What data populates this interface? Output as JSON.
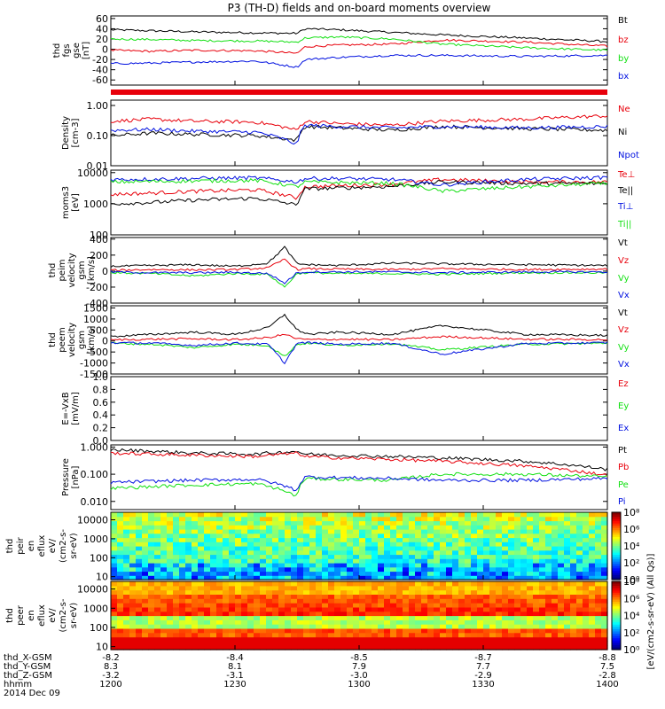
{
  "chart_data": {
    "type": "line",
    "title": "P3 (TH-D) fields and on-board moments overview",
    "date_label": "2014 Dec 09",
    "colors": {
      "black": "#000000",
      "red": "#e8000b",
      "green": "#12e012",
      "blue": "#0010e0"
    },
    "time_axis": {
      "range_hhmm": [
        "1200",
        "1400"
      ],
      "ticks": [
        "1200",
        "1230",
        "1300",
        "1330",
        "1400"
      ]
    },
    "ephemeris": {
      "labels": [
        "thd_X-GSM",
        "thd_Y-GSM",
        "thd_Z-GSM",
        "hhmm"
      ],
      "values": [
        [
          "-8.2",
          "-8.4",
          "-8.5",
          "-8.7",
          "-8.8"
        ],
        [
          "8.3",
          "8.1",
          "7.9",
          "7.7",
          "7.5"
        ],
        [
          "-3.2",
          "-3.1",
          "-3.0",
          "-2.9",
          "-2.8"
        ],
        [
          "1200",
          "1230",
          "1300",
          "1330",
          "1400"
        ]
      ]
    },
    "panels": [
      {
        "id": "fgs",
        "ylabel": [
          "thd",
          "fgs",
          "gse",
          "[nT]"
        ],
        "ylim": [
          -70,
          65
        ],
        "log": false,
        "ticks": [
          "60",
          "40",
          "20",
          "0",
          "-20",
          "-40",
          "-60"
        ],
        "tick_values": [
          60,
          40,
          20,
          0,
          -20,
          -40,
          -60
        ],
        "series": [
          {
            "name": "Bt",
            "color": "black",
            "x": [
              0,
              10,
              20,
              35,
              45,
              47,
              55,
              68,
              80,
              100,
              120
            ],
            "y": [
              38,
              36,
              34,
              32,
              31,
              40,
              38,
              33,
              28,
              22,
              15
            ]
          },
          {
            "name": "bz",
            "color": "red",
            "x": [
              0,
              10,
              20,
              35,
              45,
              47,
              55,
              68,
              80,
              100,
              120
            ],
            "y": [
              -2,
              -4,
              -2,
              -3,
              -8,
              5,
              8,
              10,
              18,
              14,
              6
            ]
          },
          {
            "name": "by",
            "color": "green",
            "x": [
              0,
              10,
              20,
              35,
              45,
              47,
              55,
              68,
              80,
              100,
              120
            ],
            "y": [
              20,
              19,
              17,
              16,
              14,
              22,
              24,
              20,
              10,
              3,
              -2
            ]
          },
          {
            "name": "bx",
            "color": "blue",
            "x": [
              0,
              10,
              20,
              35,
              45,
              47,
              55,
              68,
              80,
              100,
              120
            ],
            "y": [
              -28,
              -27,
              -25,
              -23,
              -35,
              -20,
              -16,
              -12,
              -12,
              -14,
              -12
            ]
          }
        ]
      },
      {
        "id": "density",
        "ylabel": [
          "Density",
          "[cm-3]"
        ],
        "ylim": [
          0.01,
          1.5
        ],
        "log": true,
        "ticks": [
          "1.00",
          "0.10",
          "0.01"
        ],
        "tick_values": [
          1,
          0.1,
          0.01
        ],
        "series": [
          {
            "name": "Ne",
            "color": "red",
            "x": [
              0,
              10,
              20,
              35,
              45,
              47,
              55,
              68,
              80,
              100,
              120
            ],
            "y": [
              0.3,
              0.35,
              0.3,
              0.28,
              0.15,
              0.3,
              0.25,
              0.22,
              0.3,
              0.35,
              0.45
            ]
          },
          {
            "name": "Ni",
            "color": "black",
            "x": [
              0,
              10,
              20,
              35,
              45,
              47,
              55,
              68,
              80,
              100,
              120
            ],
            "y": [
              0.1,
              0.12,
              0.11,
              0.1,
              0.07,
              0.2,
              0.18,
              0.15,
              0.2,
              0.17,
              0.15
            ]
          },
          {
            "name": "Npot",
            "color": "blue",
            "x": [
              0,
              10,
              20,
              35,
              45,
              47,
              55,
              68,
              80,
              100,
              120
            ],
            "y": [
              0.15,
              0.16,
              0.14,
              0.13,
              0.05,
              0.22,
              0.2,
              0.18,
              0.2,
              0.18,
              0.2
            ]
          }
        ]
      },
      {
        "id": "temp",
        "ylabel": [
          "moms3",
          "[eV]"
        ],
        "ylim": [
          100,
          12000
        ],
        "log": true,
        "ticks": [
          "10000",
          "1000",
          "100"
        ],
        "tick_values": [
          10000,
          1000,
          100
        ],
        "series": [
          {
            "name": "Te⊥",
            "color": "red",
            "x": [
              0,
              10,
              20,
              35,
              45,
              47,
              55,
              68,
              80,
              100,
              120
            ],
            "y": [
              2000,
              2200,
              2500,
              2800,
              1500,
              3500,
              3800,
              4200,
              6000,
              5000,
              5000
            ]
          },
          {
            "name": "Te||",
            "color": "black",
            "x": [
              0,
              10,
              20,
              35,
              45,
              47,
              55,
              68,
              80,
              100,
              120
            ],
            "y": [
              1000,
              1100,
              1300,
              1500,
              900,
              3000,
              3200,
              3600,
              5000,
              4500,
              4500
            ]
          },
          {
            "name": "Ti⊥",
            "color": "blue",
            "x": [
              0,
              10,
              20,
              35,
              45,
              47,
              55,
              68,
              80,
              100,
              120
            ],
            "y": [
              6000,
              6200,
              6500,
              6800,
              5000,
              6500,
              6500,
              6000,
              4000,
              6000,
              7000
            ]
          },
          {
            "name": "Ti||",
            "color": "green",
            "x": [
              0,
              10,
              20,
              35,
              45,
              47,
              55,
              68,
              80,
              100,
              120
            ],
            "y": [
              5000,
              5200,
              5400,
              5600,
              3500,
              5000,
              4800,
              4500,
              2500,
              3500,
              4500
            ]
          }
        ]
      },
      {
        "id": "peim",
        "ylabel": [
          "thd",
          "peim",
          "velocity",
          "gsm",
          "[km/s]"
        ],
        "ylim": [
          -400,
          420
        ],
        "log": false,
        "ticks": [
          "400",
          "200",
          "0",
          "-200",
          "-400"
        ],
        "tick_values": [
          400,
          200,
          0,
          -200,
          -400
        ],
        "series": [
          {
            "name": "Vt",
            "color": "black",
            "x": [
              0,
              10,
              20,
              30,
              38,
              42,
              45,
              48,
              55,
              68,
              80,
              100,
              120
            ],
            "y": [
              60,
              70,
              80,
              60,
              100,
              300,
              90,
              80,
              70,
              100,
              90,
              80,
              70
            ]
          },
          {
            "name": "Vz",
            "color": "red",
            "x": [
              0,
              10,
              20,
              30,
              38,
              42,
              45,
              48,
              55,
              68,
              80,
              100,
              120
            ],
            "y": [
              10,
              20,
              15,
              20,
              40,
              150,
              20,
              30,
              25,
              20,
              30,
              20,
              25
            ]
          },
          {
            "name": "Vy",
            "color": "green",
            "x": [
              0,
              10,
              20,
              30,
              38,
              42,
              45,
              48,
              55,
              68,
              80,
              100,
              120
            ],
            "y": [
              -20,
              -30,
              -60,
              -30,
              -40,
              -200,
              -30,
              -20,
              -30,
              -30,
              -40,
              -20,
              -20
            ]
          },
          {
            "name": "Vx",
            "color": "blue",
            "x": [
              0,
              10,
              20,
              30,
              38,
              42,
              45,
              48,
              55,
              68,
              80,
              100,
              120
            ],
            "y": [
              -10,
              -20,
              -20,
              -15,
              -30,
              -150,
              -20,
              -10,
              -10,
              -10,
              -20,
              -10,
              -10
            ]
          }
        ]
      },
      {
        "id": "peem",
        "ylabel": [
          "thd",
          "peem",
          "velocity",
          "gsm",
          "[km/s]"
        ],
        "ylim": [
          -1500,
          1600
        ],
        "log": false,
        "ticks": [
          "1500",
          "1000",
          "500",
          "0",
          "-500",
          "-1000",
          "-1500"
        ],
        "tick_values": [
          1500,
          1000,
          500,
          0,
          -500,
          -1000,
          -1500
        ],
        "series": [
          {
            "name": "Vt",
            "color": "black",
            "x": [
              0,
              10,
              20,
              30,
              38,
              42,
              45,
              48,
              55,
              68,
              80,
              100,
              120
            ],
            "y": [
              200,
              300,
              400,
              300,
              600,
              1200,
              500,
              300,
              400,
              300,
              700,
              300,
              250
            ]
          },
          {
            "name": "Vz",
            "color": "red",
            "x": [
              0,
              10,
              20,
              30,
              38,
              42,
              45,
              48,
              55,
              68,
              80,
              100,
              120
            ],
            "y": [
              50,
              80,
              100,
              60,
              150,
              300,
              100,
              60,
              80,
              60,
              200,
              80,
              60
            ]
          },
          {
            "name": "Vy",
            "color": "green",
            "x": [
              0,
              10,
              20,
              30,
              38,
              42,
              45,
              48,
              55,
              68,
              80,
              100,
              120
            ],
            "y": [
              -100,
              -150,
              -300,
              -150,
              -200,
              -700,
              -150,
              -100,
              -200,
              -120,
              -400,
              -150,
              -100
            ]
          },
          {
            "name": "Vx",
            "color": "blue",
            "x": [
              0,
              10,
              20,
              30,
              38,
              42,
              45,
              48,
              55,
              68,
              80,
              100,
              120
            ],
            "y": [
              -80,
              -100,
              -200,
              -100,
              -150,
              -1000,
              -100,
              -80,
              -150,
              -100,
              -600,
              -120,
              -80
            ]
          }
        ]
      },
      {
        "id": "efield",
        "ylabel": [
          "E=-VxB",
          "[mV/m]"
        ],
        "ylim": [
          0,
          1
        ],
        "log": false,
        "ticks": [
          "1.0",
          "0.8",
          "0.6",
          "0.4",
          "0.2",
          "0.0"
        ],
        "tick_values": [
          1,
          0.8,
          0.6,
          0.4,
          0.2,
          0
        ],
        "series": [
          {
            "name": "Ez",
            "color": "red",
            "x": [],
            "y": []
          },
          {
            "name": "Ey",
            "color": "green",
            "x": [],
            "y": []
          },
          {
            "name": "Ex",
            "color": "blue",
            "x": [],
            "y": []
          }
        ]
      },
      {
        "id": "pressure",
        "ylabel": [
          "Pressure",
          "[nPa]"
        ],
        "ylim": [
          0.005,
          1.2
        ],
        "log": true,
        "ticks": [
          "1.000",
          "0.100",
          "0.010"
        ],
        "tick_values": [
          1,
          0.1,
          0.01
        ],
        "series": [
          {
            "name": "Pt",
            "color": "black",
            "x": [
              0,
              10,
              20,
              35,
              45,
              47,
              55,
              68,
              80,
              100,
              120
            ],
            "y": [
              0.8,
              0.7,
              0.6,
              0.55,
              0.7,
              0.55,
              0.5,
              0.45,
              0.4,
              0.3,
              0.15
            ]
          },
          {
            "name": "Pb",
            "color": "red",
            "x": [
              0,
              10,
              20,
              35,
              45,
              47,
              55,
              68,
              80,
              100,
              120
            ],
            "y": [
              0.6,
              0.55,
              0.5,
              0.45,
              0.6,
              0.45,
              0.4,
              0.35,
              0.3,
              0.2,
              0.09
            ]
          },
          {
            "name": "Pe",
            "color": "green",
            "x": [
              0,
              10,
              20,
              35,
              45,
              47,
              55,
              68,
              80,
              100,
              120
            ],
            "y": [
              0.03,
              0.035,
              0.04,
              0.045,
              0.015,
              0.07,
              0.065,
              0.06,
              0.1,
              0.1,
              0.08
            ]
          },
          {
            "name": "Pi",
            "color": "blue",
            "x": [
              0,
              10,
              20,
              35,
              45,
              47,
              55,
              68,
              80,
              100,
              120
            ],
            "y": [
              0.05,
              0.055,
              0.06,
              0.065,
              0.025,
              0.08,
              0.075,
              0.07,
              0.06,
              0.06,
              0.07
            ]
          }
        ]
      }
    ],
    "spectrograms": [
      {
        "id": "peir",
        "ylabel": [
          "thd",
          "peir",
          "en",
          "eflux",
          "eV/",
          "(cm2-s-",
          "sr-eV)"
        ],
        "ticks": [
          "10000",
          "1000",
          "100",
          "10"
        ],
        "tick_values": [
          10000,
          1000,
          100,
          10
        ],
        "ylim": [
          7,
          25000
        ],
        "colorbar": {
          "label": "[eV/(cm2-s-sr-eV)]",
          "ticks": [
            "10⁸",
            "10⁶",
            "10⁴",
            "10²",
            "10⁰"
          ],
          "exp": [
            8,
            6,
            4,
            2,
            0
          ]
        }
      },
      {
        "id": "peer",
        "ylabel": [
          "thd",
          "peer",
          "en",
          "eflux",
          "eV/",
          "(cm2-s-",
          "sr-eV)"
        ],
        "ticks": [
          "10000",
          "1000",
          "100",
          "10"
        ],
        "tick_values": [
          10000,
          1000,
          100,
          10
        ],
        "ylim": [
          7,
          25000
        ],
        "colorbar": {
          "label": "[eV/(cm2-s-sr-eV)]",
          "ticks": [
            "10⁸",
            "10⁶",
            "10⁴",
            "10²",
            "10⁰"
          ],
          "exp": [
            8,
            6,
            4,
            2,
            0
          ]
        }
      }
    ],
    "right_side_label": "[eV/(cm2-s-sr-eV) (All Qs)]"
  }
}
